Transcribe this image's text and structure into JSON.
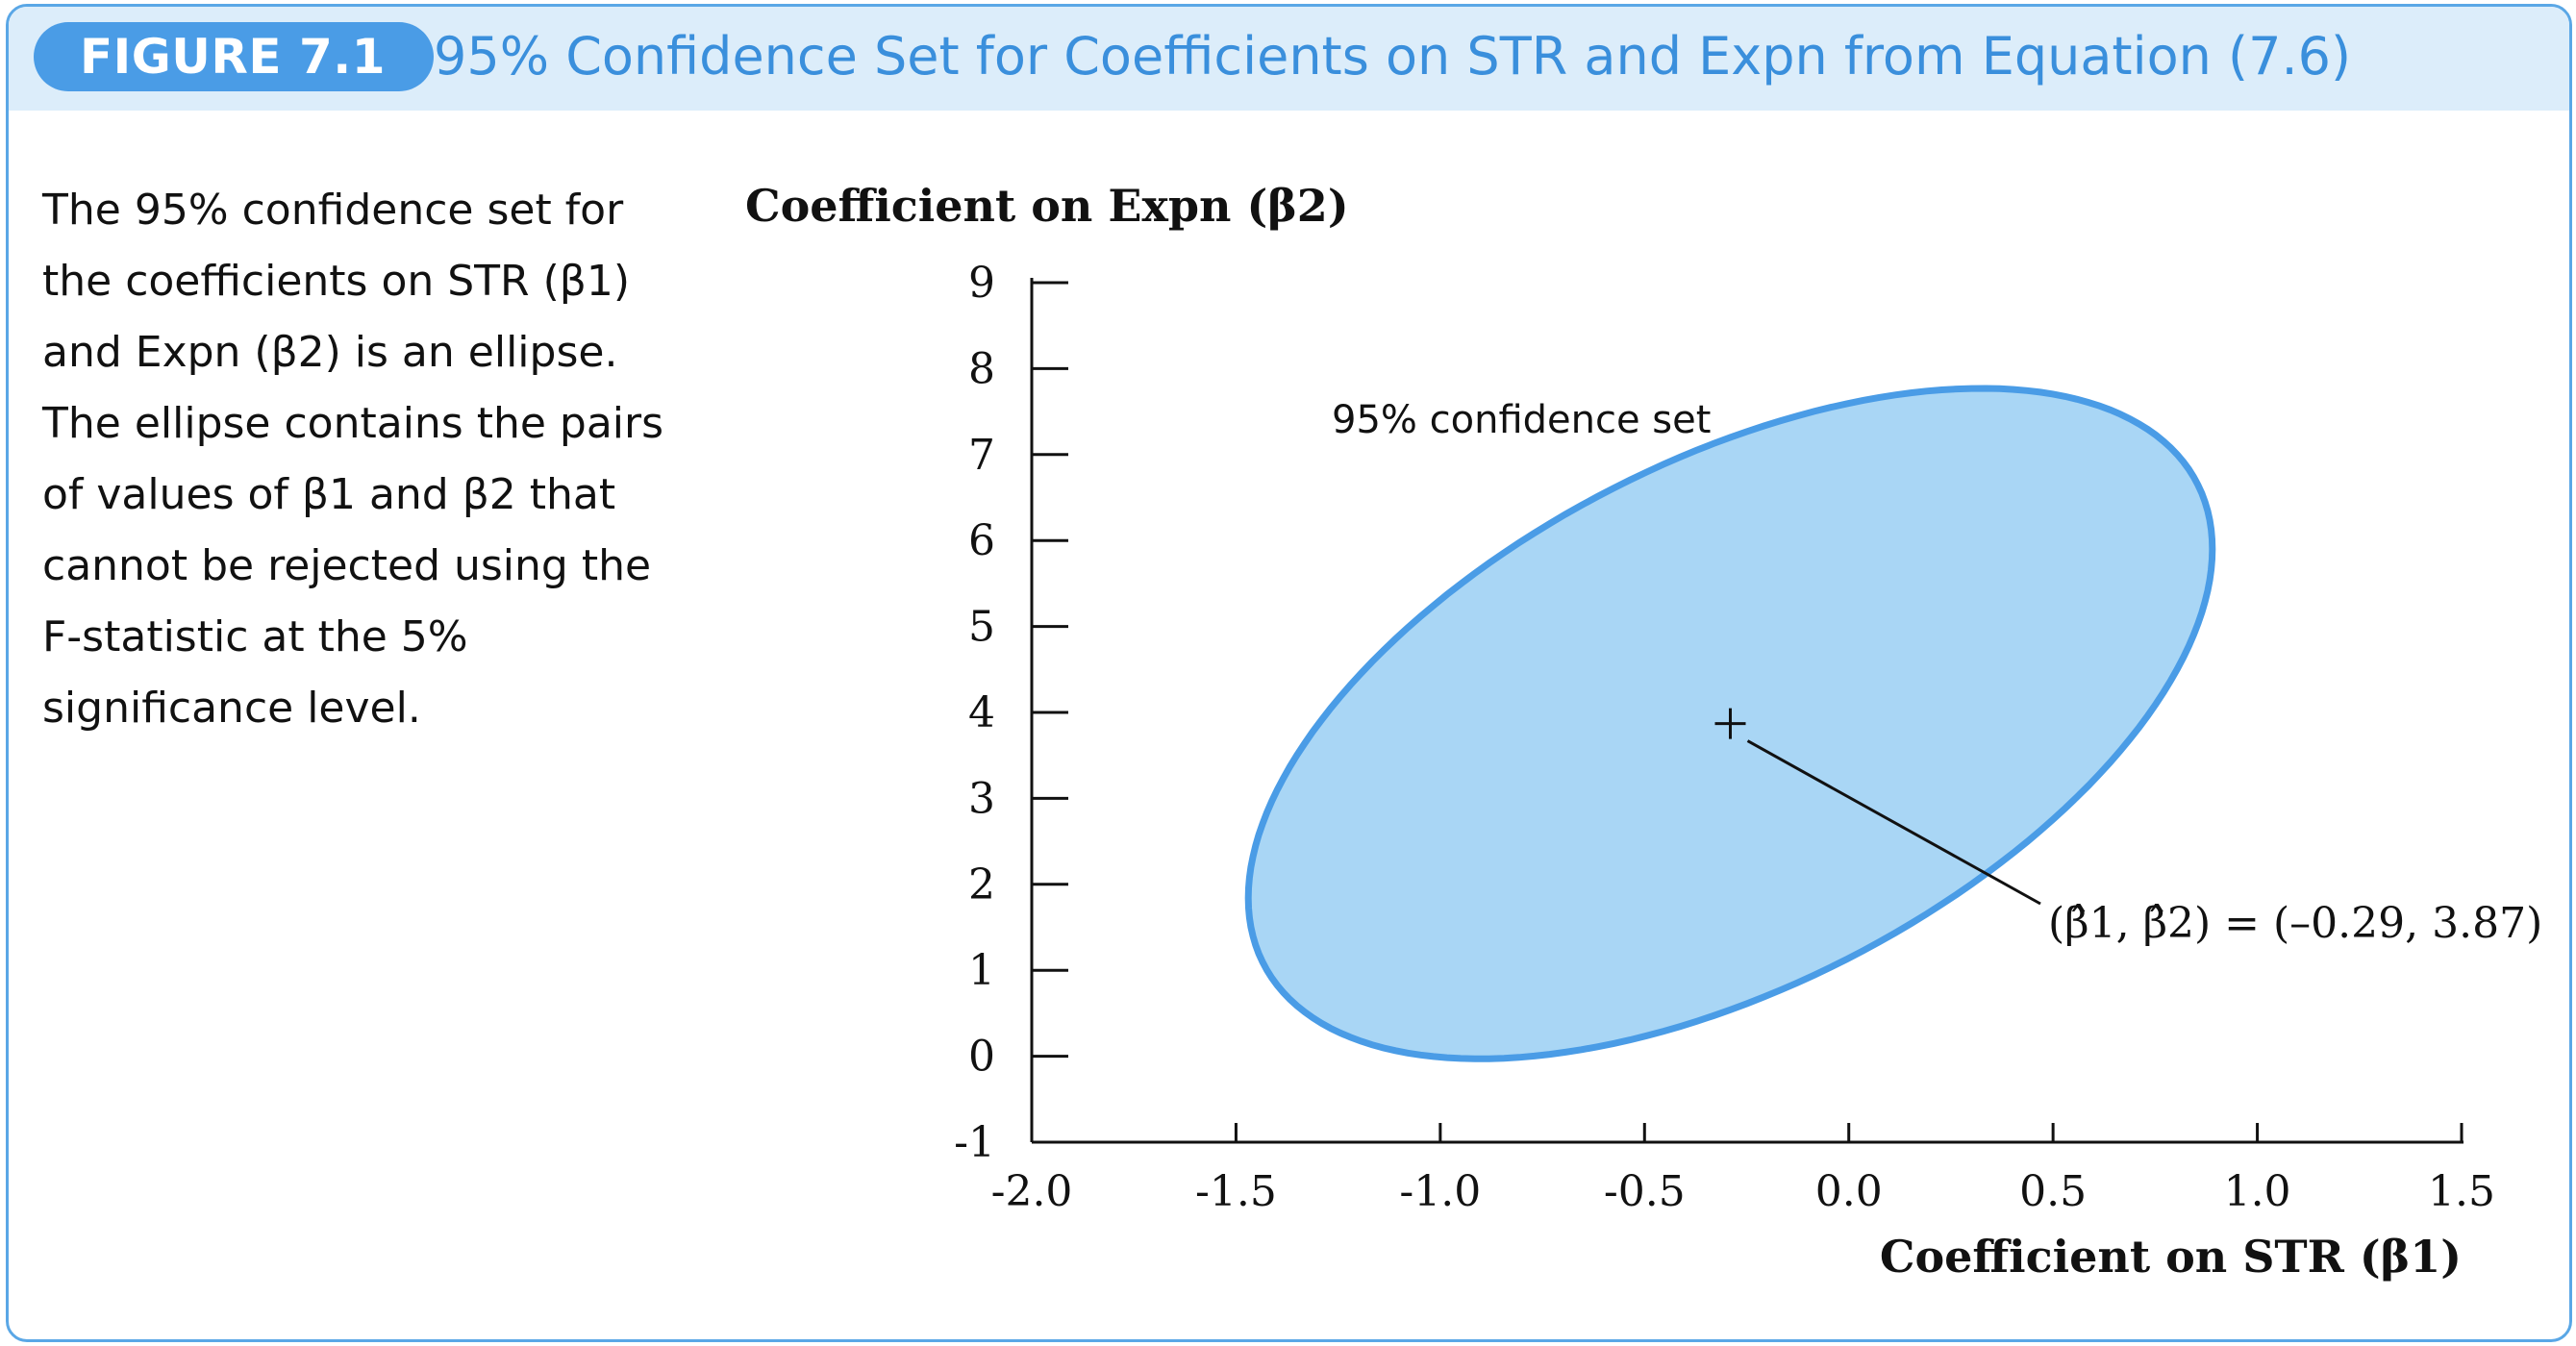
{
  "figure": {
    "badge": "FIGURE 7.1",
    "title": "95% Confidence Set for Coefficients on STR and Expn from Equation (7.6)"
  },
  "caption": {
    "text": "The 95% confidence set for the coefficients on STR (β1) and Expn (β2) is an ellipse. The ellipse contains the pairs of values of β1 and β2 that cannot be rejected using the F-statistic at the 5% significance level."
  },
  "colors": {
    "accent": "#4a9ce6",
    "header_bg": "#dcedfa",
    "ellipse_fill": "#a9d6f5",
    "ellipse_stroke": "#4a9ce6"
  },
  "chart_data": {
    "type": "scatter",
    "ylabel": "Coefficient on Expn (β2)",
    "xlabel": "Coefficient on STR (β1)",
    "xlim": [
      -2.0,
      1.5
    ],
    "ylim": [
      -1,
      9
    ],
    "x_ticks": [
      "-2.0",
      "-1.5",
      "-1.0",
      "-0.5",
      "0.0",
      "0.5",
      "1.0",
      "1.5"
    ],
    "y_ticks": [
      "-1",
      "0",
      "1",
      "2",
      "3",
      "4",
      "5",
      "6",
      "7",
      "8",
      "9"
    ],
    "grid": false,
    "confidence_set": {
      "label": "95% confidence set",
      "center": [
        -0.29,
        3.87
      ],
      "x_range": [
        -1.47,
        0.89
      ],
      "y_range": [
        -0.03,
        7.77
      ],
      "extreme_points": [
        [
          -1.47,
          1.8
        ],
        [
          0.89,
          5.9
        ],
        [
          0.33,
          7.77
        ],
        [
          -0.91,
          -0.03
        ]
      ]
    },
    "point_estimate": {
      "x": -0.29,
      "y": 3.87,
      "annotation": "(β̂1, β̂2) = (–0.29, 3.87)"
    }
  }
}
